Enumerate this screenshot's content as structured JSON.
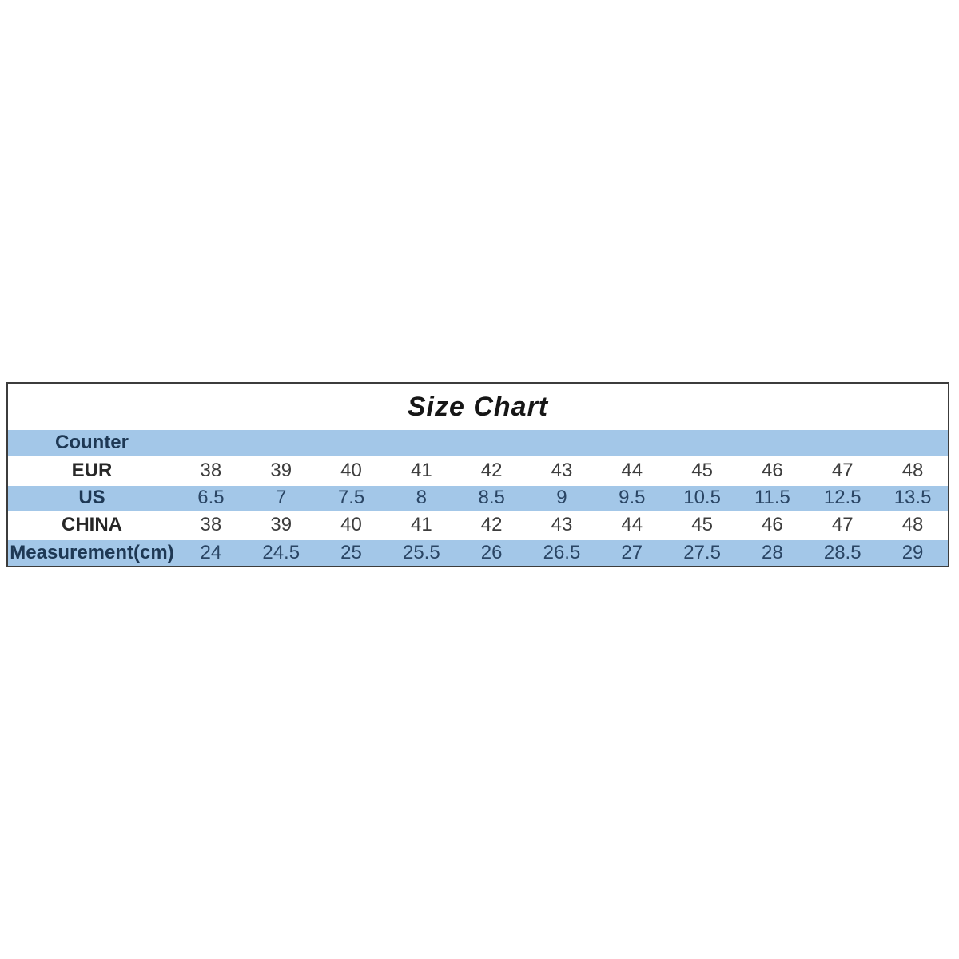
{
  "page": {
    "background_color": "#ffffff"
  },
  "chart_data": {
    "type": "table",
    "title": "Size Chart",
    "rows": [
      {
        "label": "Counter",
        "band": "blue",
        "values": []
      },
      {
        "label": "EUR",
        "band": "white",
        "values": [
          "38",
          "39",
          "40",
          "41",
          "42",
          "43",
          "44",
          "45",
          "46",
          "47",
          "48"
        ]
      },
      {
        "label": "US",
        "band": "blue",
        "values": [
          "6.5",
          "7",
          "7.5",
          "8",
          "8.5",
          "9",
          "9.5",
          "10.5",
          "11.5",
          "12.5",
          "13.5"
        ]
      },
      {
        "label": "CHINA",
        "band": "white",
        "values": [
          "38",
          "39",
          "40",
          "41",
          "42",
          "43",
          "44",
          "45",
          "46",
          "47",
          "48"
        ]
      },
      {
        "label": "Measurement(cm)",
        "band": "blue",
        "values": [
          "24",
          "24.5",
          "25",
          "25.5",
          "26",
          "26.5",
          "27",
          "27.5",
          "28",
          "28.5",
          "29"
        ]
      }
    ],
    "layout": {
      "band_blue_color": "#a3c7e8",
      "band_white_color": "#ffffff",
      "border_color": "#3c3c3c",
      "title_color": "#161616",
      "blue_row_text_color": "#2a4564",
      "white_row_text_color": "#3d3d3d",
      "grid": "horizontal-bands-only",
      "legend": "none"
    }
  }
}
